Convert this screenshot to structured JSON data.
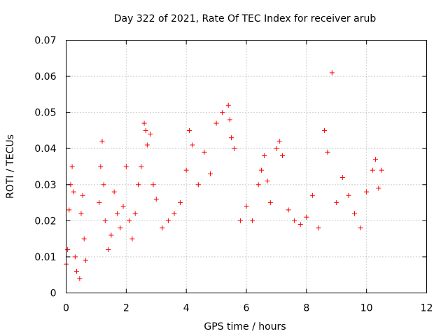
{
  "chart_data": {
    "type": "scatter",
    "title": "Day 322 of 2021, Rate Of TEC Index for receiver arub",
    "xlabel": "GPS time / hours",
    "ylabel": "ROTI / TECUs",
    "xlim": [
      0,
      12
    ],
    "ylim": [
      0,
      0.07
    ],
    "xticks": [
      0,
      2,
      4,
      6,
      8,
      10,
      12
    ],
    "yticks": [
      0,
      0.01,
      0.02,
      0.03,
      0.04,
      0.05,
      0.06,
      0.07
    ],
    "xtick_labels": [
      "0",
      "2",
      "4",
      "6",
      "8",
      "10",
      "12"
    ],
    "ytick_labels": [
      "0",
      "0.01",
      "0.02",
      "0.03",
      "0.04",
      "0.05",
      "0.06",
      "0.07"
    ],
    "grid": true,
    "marker": "+",
    "color": "#ff0000",
    "series": [
      {
        "name": "ROTI",
        "envelope_note": "dense point cloud; points listed are representative readings",
        "x": [
          0.0,
          0.05,
          0.1,
          0.15,
          0.2,
          0.25,
          0.3,
          0.35,
          0.45,
          0.5,
          0.55,
          0.6,
          0.65,
          1.1,
          1.15,
          1.2,
          1.25,
          1.3,
          1.4,
          1.5,
          1.6,
          1.7,
          1.8,
          1.9,
          2.0,
          2.1,
          2.2,
          2.3,
          2.4,
          2.5,
          2.6,
          2.65,
          2.7,
          2.8,
          2.9,
          3.0,
          3.2,
          3.4,
          3.6,
          3.8,
          4.0,
          4.1,
          4.2,
          4.4,
          4.6,
          4.8,
          5.0,
          5.2,
          5.4,
          5.45,
          5.5,
          5.6,
          5.8,
          6.0,
          6.2,
          6.4,
          6.5,
          6.6,
          6.7,
          6.8,
          7.0,
          7.1,
          7.2,
          7.4,
          7.6,
          7.8,
          8.0,
          8.2,
          8.4,
          8.6,
          8.7,
          8.85,
          9.0,
          9.2,
          9.4,
          9.6,
          9.8,
          10.0,
          10.2,
          10.3,
          10.4,
          10.5
        ],
        "y": [
          0.008,
          0.012,
          0.023,
          0.03,
          0.035,
          0.028,
          0.01,
          0.006,
          0.004,
          0.022,
          0.027,
          0.015,
          0.009,
          0.025,
          0.035,
          0.042,
          0.03,
          0.02,
          0.012,
          0.016,
          0.028,
          0.022,
          0.018,
          0.024,
          0.035,
          0.02,
          0.015,
          0.022,
          0.03,
          0.035,
          0.047,
          0.045,
          0.041,
          0.044,
          0.03,
          0.026,
          0.018,
          0.02,
          0.022,
          0.025,
          0.034,
          0.045,
          0.041,
          0.03,
          0.039,
          0.033,
          0.047,
          0.05,
          0.052,
          0.048,
          0.043,
          0.04,
          0.02,
          0.024,
          0.02,
          0.03,
          0.034,
          0.038,
          0.031,
          0.025,
          0.04,
          0.042,
          0.038,
          0.023,
          0.02,
          0.019,
          0.021,
          0.027,
          0.018,
          0.045,
          0.039,
          0.061,
          0.025,
          0.032,
          0.027,
          0.022,
          0.018,
          0.028,
          0.034,
          0.037,
          0.029,
          0.034
        ]
      }
    ]
  }
}
